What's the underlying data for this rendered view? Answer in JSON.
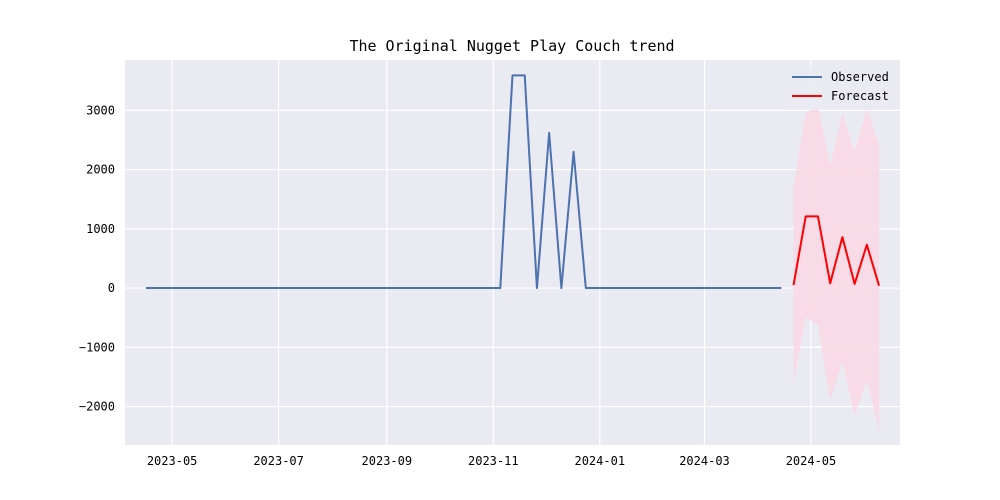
{
  "chart_data": {
    "type": "line",
    "title": "The Original Nugget Play Couch trend",
    "xlabel": "",
    "ylabel": "",
    "ylim": [
      -2650,
      3850
    ],
    "xlim": [
      "2023-04-04",
      "2024-06-21"
    ],
    "x_tick_labels": [
      "2023-05",
      "2023-07",
      "2023-09",
      "2023-11",
      "2024-01",
      "2024-03",
      "2024-05"
    ],
    "x_tick_dates": [
      "2023-05-01",
      "2023-07-01",
      "2023-09-01",
      "2023-11-01",
      "2024-01-01",
      "2024-03-01",
      "2024-05-01"
    ],
    "y_tick_labels": [
      "3000",
      "2000",
      "1000",
      "0",
      "−1000",
      "−2000"
    ],
    "y_tick_values": [
      3000,
      2000,
      1000,
      0,
      -1000,
      -2000
    ],
    "grid": true,
    "legend_position": "top-right",
    "series": [
      {
        "name": "Observed",
        "color": "#4c72b0",
        "points": [
          [
            "2023-04-16",
            0
          ],
          [
            "2023-04-23",
            0
          ],
          [
            "2023-04-30",
            0
          ],
          [
            "2023-05-07",
            0
          ],
          [
            "2023-05-14",
            0
          ],
          [
            "2023-05-21",
            0
          ],
          [
            "2023-05-28",
            0
          ],
          [
            "2023-06-04",
            0
          ],
          [
            "2023-06-11",
            0
          ],
          [
            "2023-06-18",
            0
          ],
          [
            "2023-06-25",
            0
          ],
          [
            "2023-07-02",
            0
          ],
          [
            "2023-07-09",
            0
          ],
          [
            "2023-07-16",
            0
          ],
          [
            "2023-07-23",
            0
          ],
          [
            "2023-07-30",
            0
          ],
          [
            "2023-08-06",
            0
          ],
          [
            "2023-08-13",
            0
          ],
          [
            "2023-08-20",
            0
          ],
          [
            "2023-08-27",
            0
          ],
          [
            "2023-09-03",
            0
          ],
          [
            "2023-09-10",
            0
          ],
          [
            "2023-09-17",
            0
          ],
          [
            "2023-09-24",
            0
          ],
          [
            "2023-10-01",
            0
          ],
          [
            "2023-10-08",
            0
          ],
          [
            "2023-10-15",
            0
          ],
          [
            "2023-10-22",
            0
          ],
          [
            "2023-10-29",
            0
          ],
          [
            "2023-11-05",
            0
          ],
          [
            "2023-11-12",
            3590
          ],
          [
            "2023-11-19",
            3590
          ],
          [
            "2023-11-26",
            0
          ],
          [
            "2023-12-03",
            2620
          ],
          [
            "2023-12-10",
            0
          ],
          [
            "2023-12-17",
            2300
          ],
          [
            "2023-12-24",
            0
          ],
          [
            "2023-12-31",
            0
          ],
          [
            "2024-01-07",
            0
          ],
          [
            "2024-01-14",
            0
          ],
          [
            "2024-01-21",
            0
          ],
          [
            "2024-01-28",
            0
          ],
          [
            "2024-02-04",
            0
          ],
          [
            "2024-02-11",
            0
          ],
          [
            "2024-02-18",
            0
          ],
          [
            "2024-02-25",
            0
          ],
          [
            "2024-03-03",
            0
          ],
          [
            "2024-03-10",
            0
          ],
          [
            "2024-03-17",
            0
          ],
          [
            "2024-03-24",
            0
          ],
          [
            "2024-03-31",
            0
          ],
          [
            "2024-04-07",
            0
          ],
          [
            "2024-04-14",
            0
          ]
        ]
      },
      {
        "name": "Forecast",
        "color": "#ff0000",
        "points": [
          [
            "2024-04-21",
            50
          ],
          [
            "2024-04-28",
            1210
          ],
          [
            "2024-05-05",
            1210
          ],
          [
            "2024-05-12",
            80
          ],
          [
            "2024-05-19",
            860
          ],
          [
            "2024-05-26",
            70
          ],
          [
            "2024-06-02",
            730
          ],
          [
            "2024-06-09",
            40
          ]
        ],
        "interval_color": "#f9d9e4",
        "interval": [
          [
            "2024-04-21",
            -1600,
            1700
          ],
          [
            "2024-04-28",
            -500,
            2950
          ],
          [
            "2024-05-05",
            -620,
            3080
          ],
          [
            "2024-05-12",
            -1900,
            2060
          ],
          [
            "2024-05-19",
            -1250,
            2950
          ],
          [
            "2024-05-26",
            -2150,
            2300
          ],
          [
            "2024-06-02",
            -1550,
            3020
          ],
          [
            "2024-06-09",
            -2400,
            2420
          ]
        ]
      }
    ]
  }
}
